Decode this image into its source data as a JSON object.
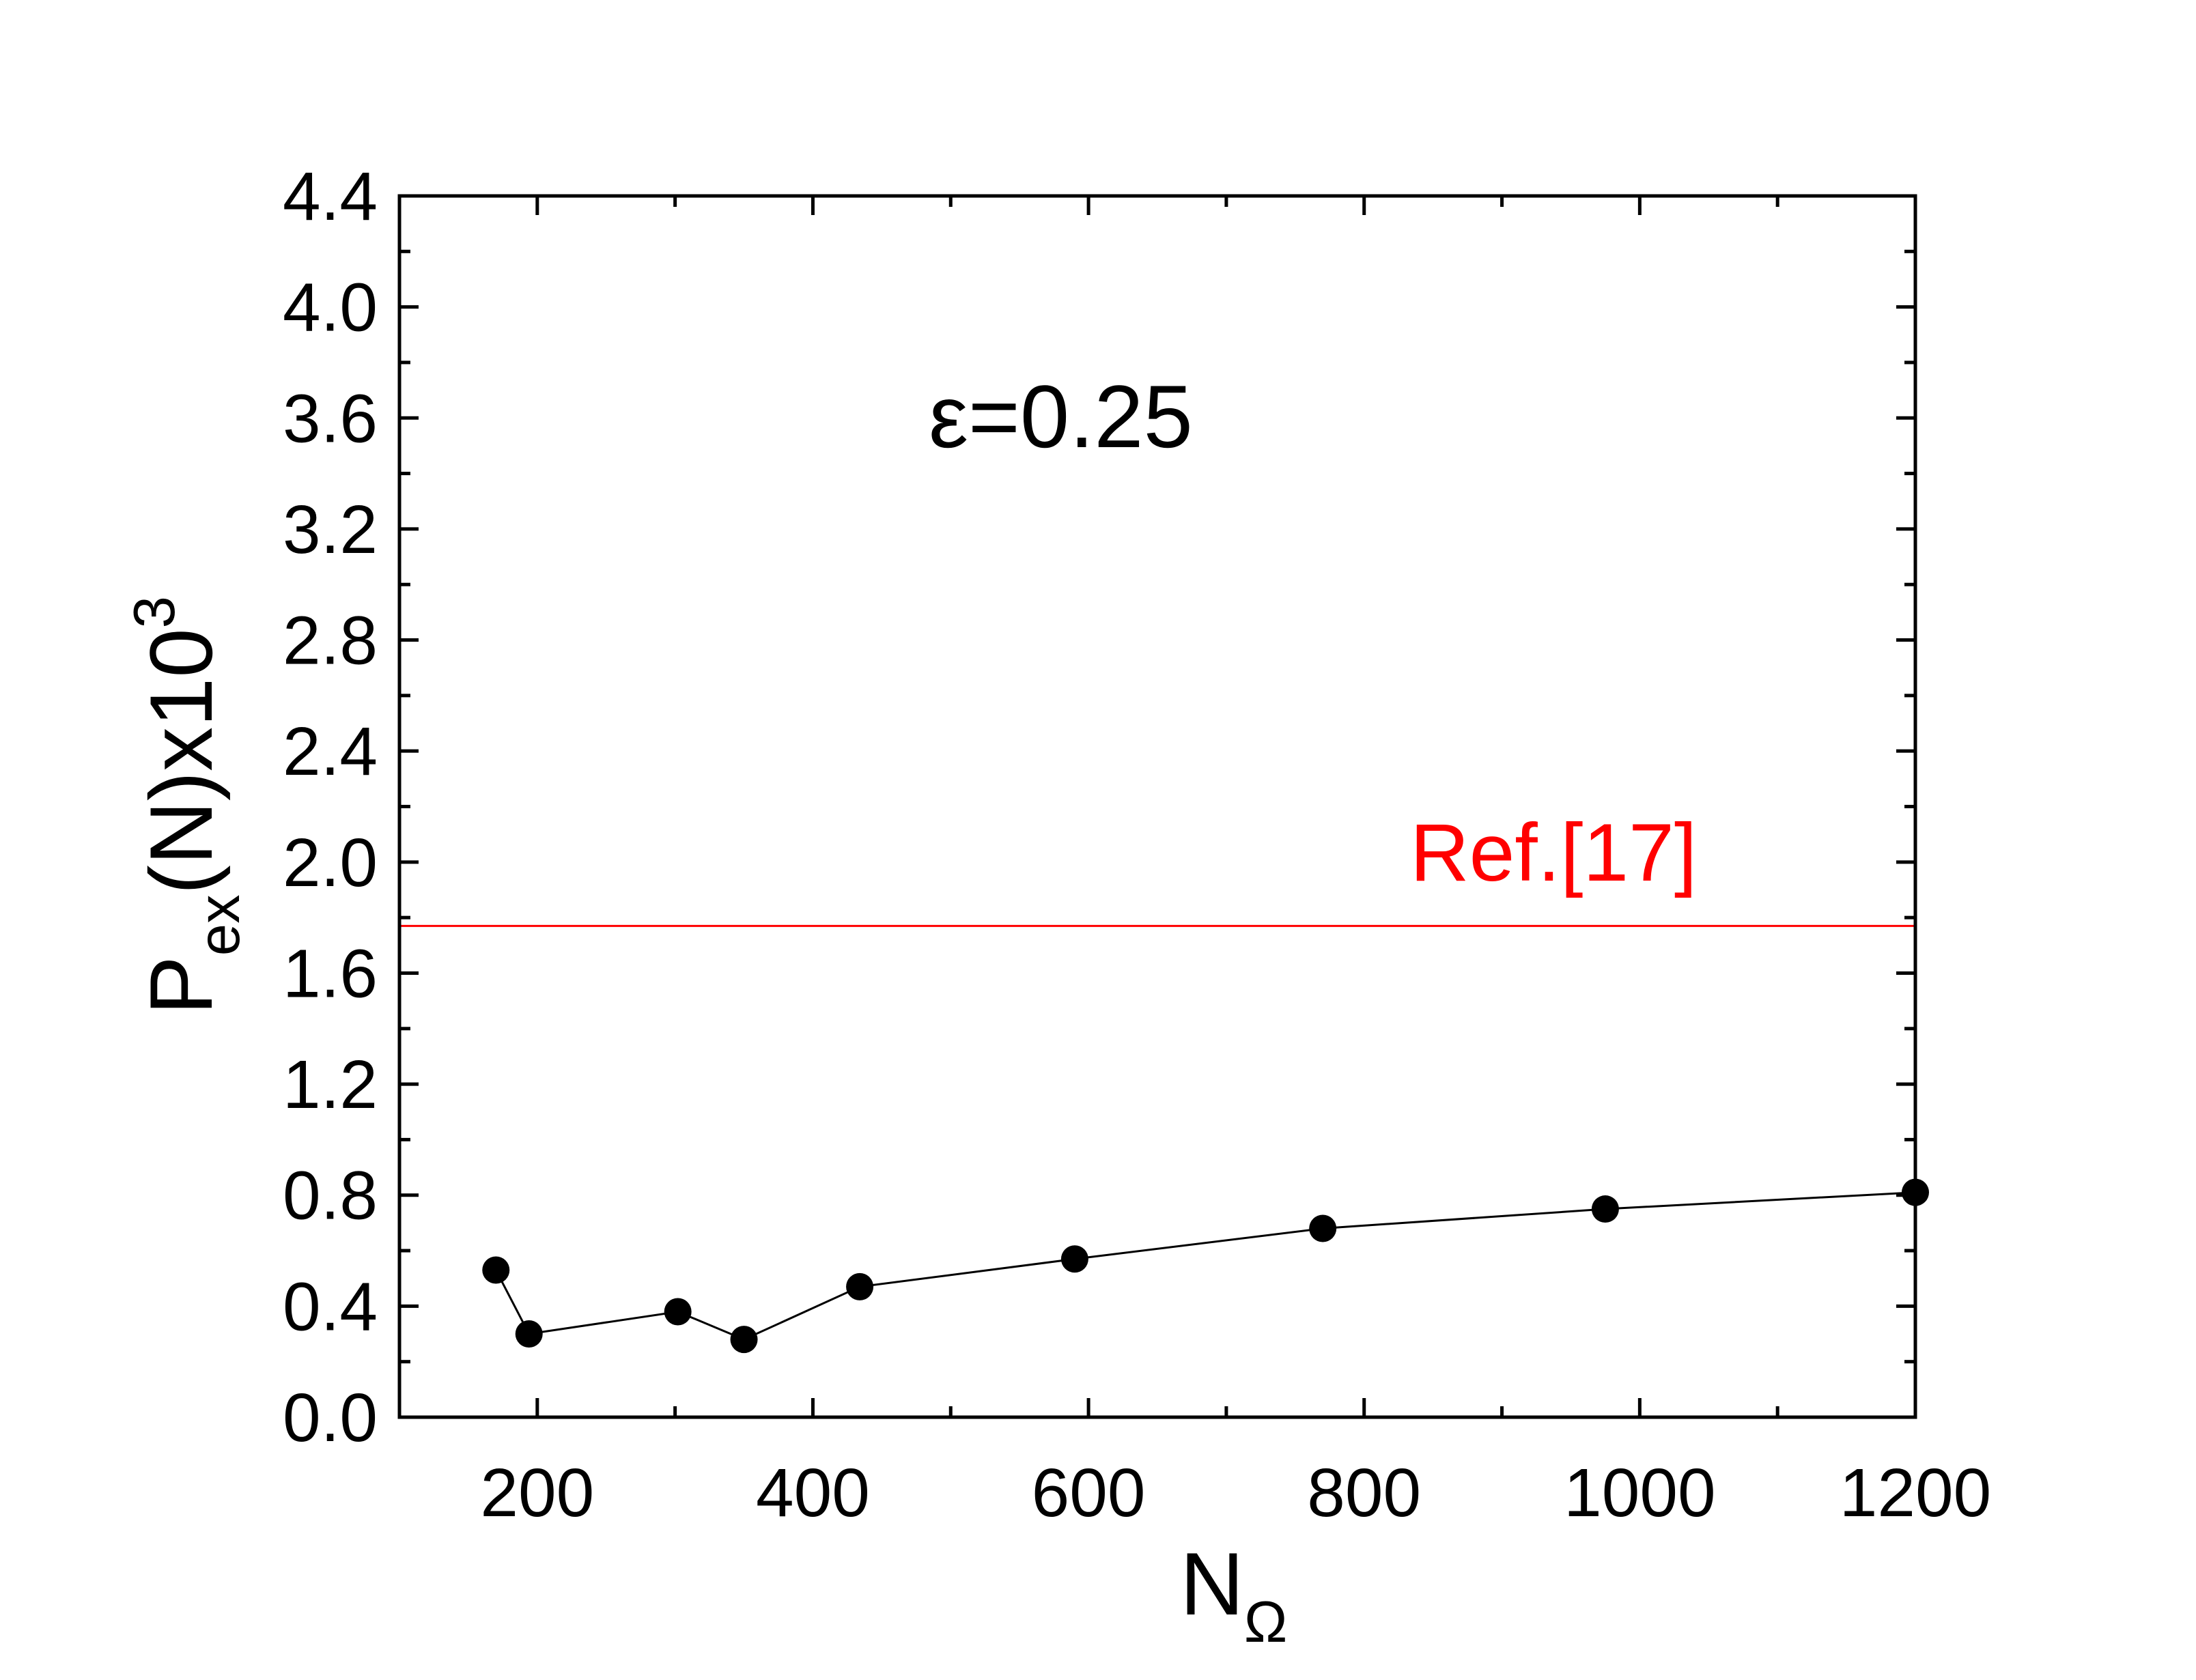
{
  "chart_data": {
    "type": "line",
    "xlabel": {
      "main": "N",
      "sub": "Ω"
    },
    "ylabel": {
      "main": "P",
      "sub": "ex",
      "rest": "(N)x10",
      "sup": "3"
    },
    "xlim": [
      100,
      1200
    ],
    "ylim": [
      0.0,
      4.4
    ],
    "xticks": [
      200,
      400,
      600,
      800,
      1000,
      1200
    ],
    "xtick_labels": [
      "200",
      "400",
      "600",
      "800",
      "1000",
      "1200"
    ],
    "yticks": [
      0.0,
      0.4,
      0.8,
      1.2,
      1.6,
      2.0,
      2.4,
      2.8,
      3.2,
      3.6,
      4.0,
      4.4
    ],
    "ytick_labels": [
      "0.0",
      "0.4",
      "0.8",
      "1.2",
      "1.6",
      "2.0",
      "2.4",
      "2.8",
      "3.2",
      "3.6",
      "4.0",
      "4.4"
    ],
    "grid": false,
    "annotation": "ε=0.25",
    "series": [
      {
        "marker": "filled-circle",
        "color": "#000000",
        "x": [
          170,
          194,
          302,
          350,
          434,
          590,
          770,
          975,
          1200
        ],
        "y": [
          0.53,
          0.3,
          0.38,
          0.28,
          0.47,
          0.57,
          0.68,
          0.75,
          0.81
        ]
      }
    ],
    "reference_line": {
      "label": "Ref.[17]",
      "y": 1.77,
      "color": "#ff0000"
    }
  }
}
